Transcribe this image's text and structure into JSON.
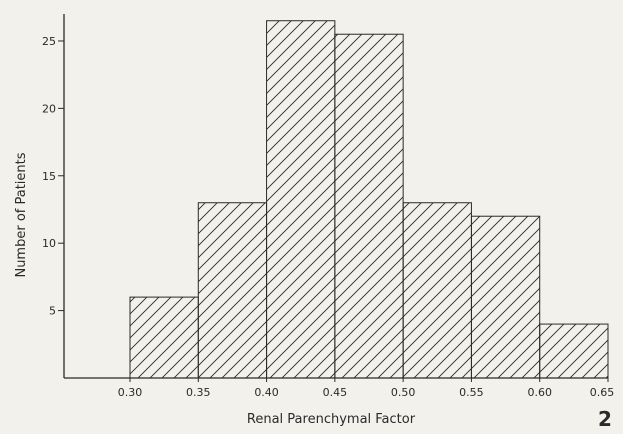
{
  "chart_data": {
    "type": "bar",
    "title": "",
    "xlabel": "Renal Parenchymal Factor",
    "ylabel": "Number of Patients",
    "figure_label": "2",
    "x_ticks": [
      "0.30",
      "0.35",
      "0.40",
      "0.45",
      "0.50",
      "0.55",
      "0.60",
      "0.65"
    ],
    "y_ticks": [
      {
        "value": 5,
        "label": "5"
      },
      {
        "value": 10,
        "label": "10"
      },
      {
        "value": 15,
        "label": "15"
      },
      {
        "value": 20,
        "label": "20"
      },
      {
        "value": 25,
        "label": "25"
      }
    ],
    "bins": [
      {
        "start": 0.3,
        "end": 0.35,
        "value": 6
      },
      {
        "start": 0.35,
        "end": 0.4,
        "value": 13
      },
      {
        "start": 0.4,
        "end": 0.45,
        "value": 26.5
      },
      {
        "start": 0.45,
        "end": 0.5,
        "value": 25.5
      },
      {
        "start": 0.5,
        "end": 0.55,
        "value": 13
      },
      {
        "start": 0.55,
        "end": 0.6,
        "value": 12
      },
      {
        "start": 0.6,
        "end": 0.65,
        "value": 4
      }
    ],
    "xlim": [
      0.3,
      0.65
    ],
    "ylim": [
      0,
      27
    ],
    "grid": false,
    "hatch": "diagonal",
    "colors": {
      "ink": "#2a2a2a",
      "background": "#f3f1ec"
    }
  }
}
